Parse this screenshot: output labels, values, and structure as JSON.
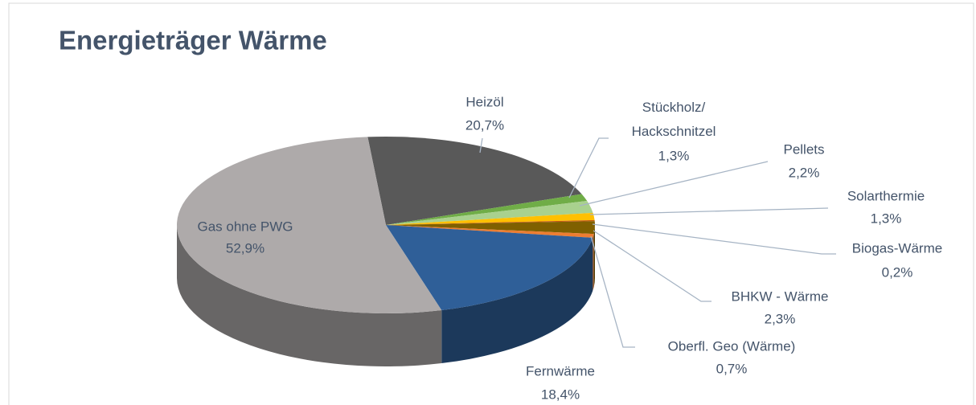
{
  "chart_data": {
    "type": "pie3d",
    "title": "Energieträger Wärme",
    "categories": [
      "Heizöl",
      "Stückholz/ Hackschnitzel",
      "Pellets",
      "Solarthermie",
      "Biogas-Wärme",
      "BHKW - Wärme",
      "Oberfl. Geo (Wärme)",
      "Fernwärme",
      "Gas ohne PWG"
    ],
    "values": [
      20.7,
      1.3,
      2.2,
      1.3,
      0.2,
      2.3,
      0.7,
      18.4,
      52.9
    ],
    "value_labels": [
      "20,7%",
      "1,3%",
      "2,2%",
      "1,3%",
      "0,2%",
      "2,3%",
      "0,7%",
      "18,4%",
      "52,9%"
    ],
    "colors": [
      "#595959",
      "#70ad47",
      "#a9d18e",
      "#ffc000",
      "#c55a11",
      "#7f6000",
      "#ed7d31",
      "#2f5f98",
      "#aeaaaa"
    ]
  }
}
